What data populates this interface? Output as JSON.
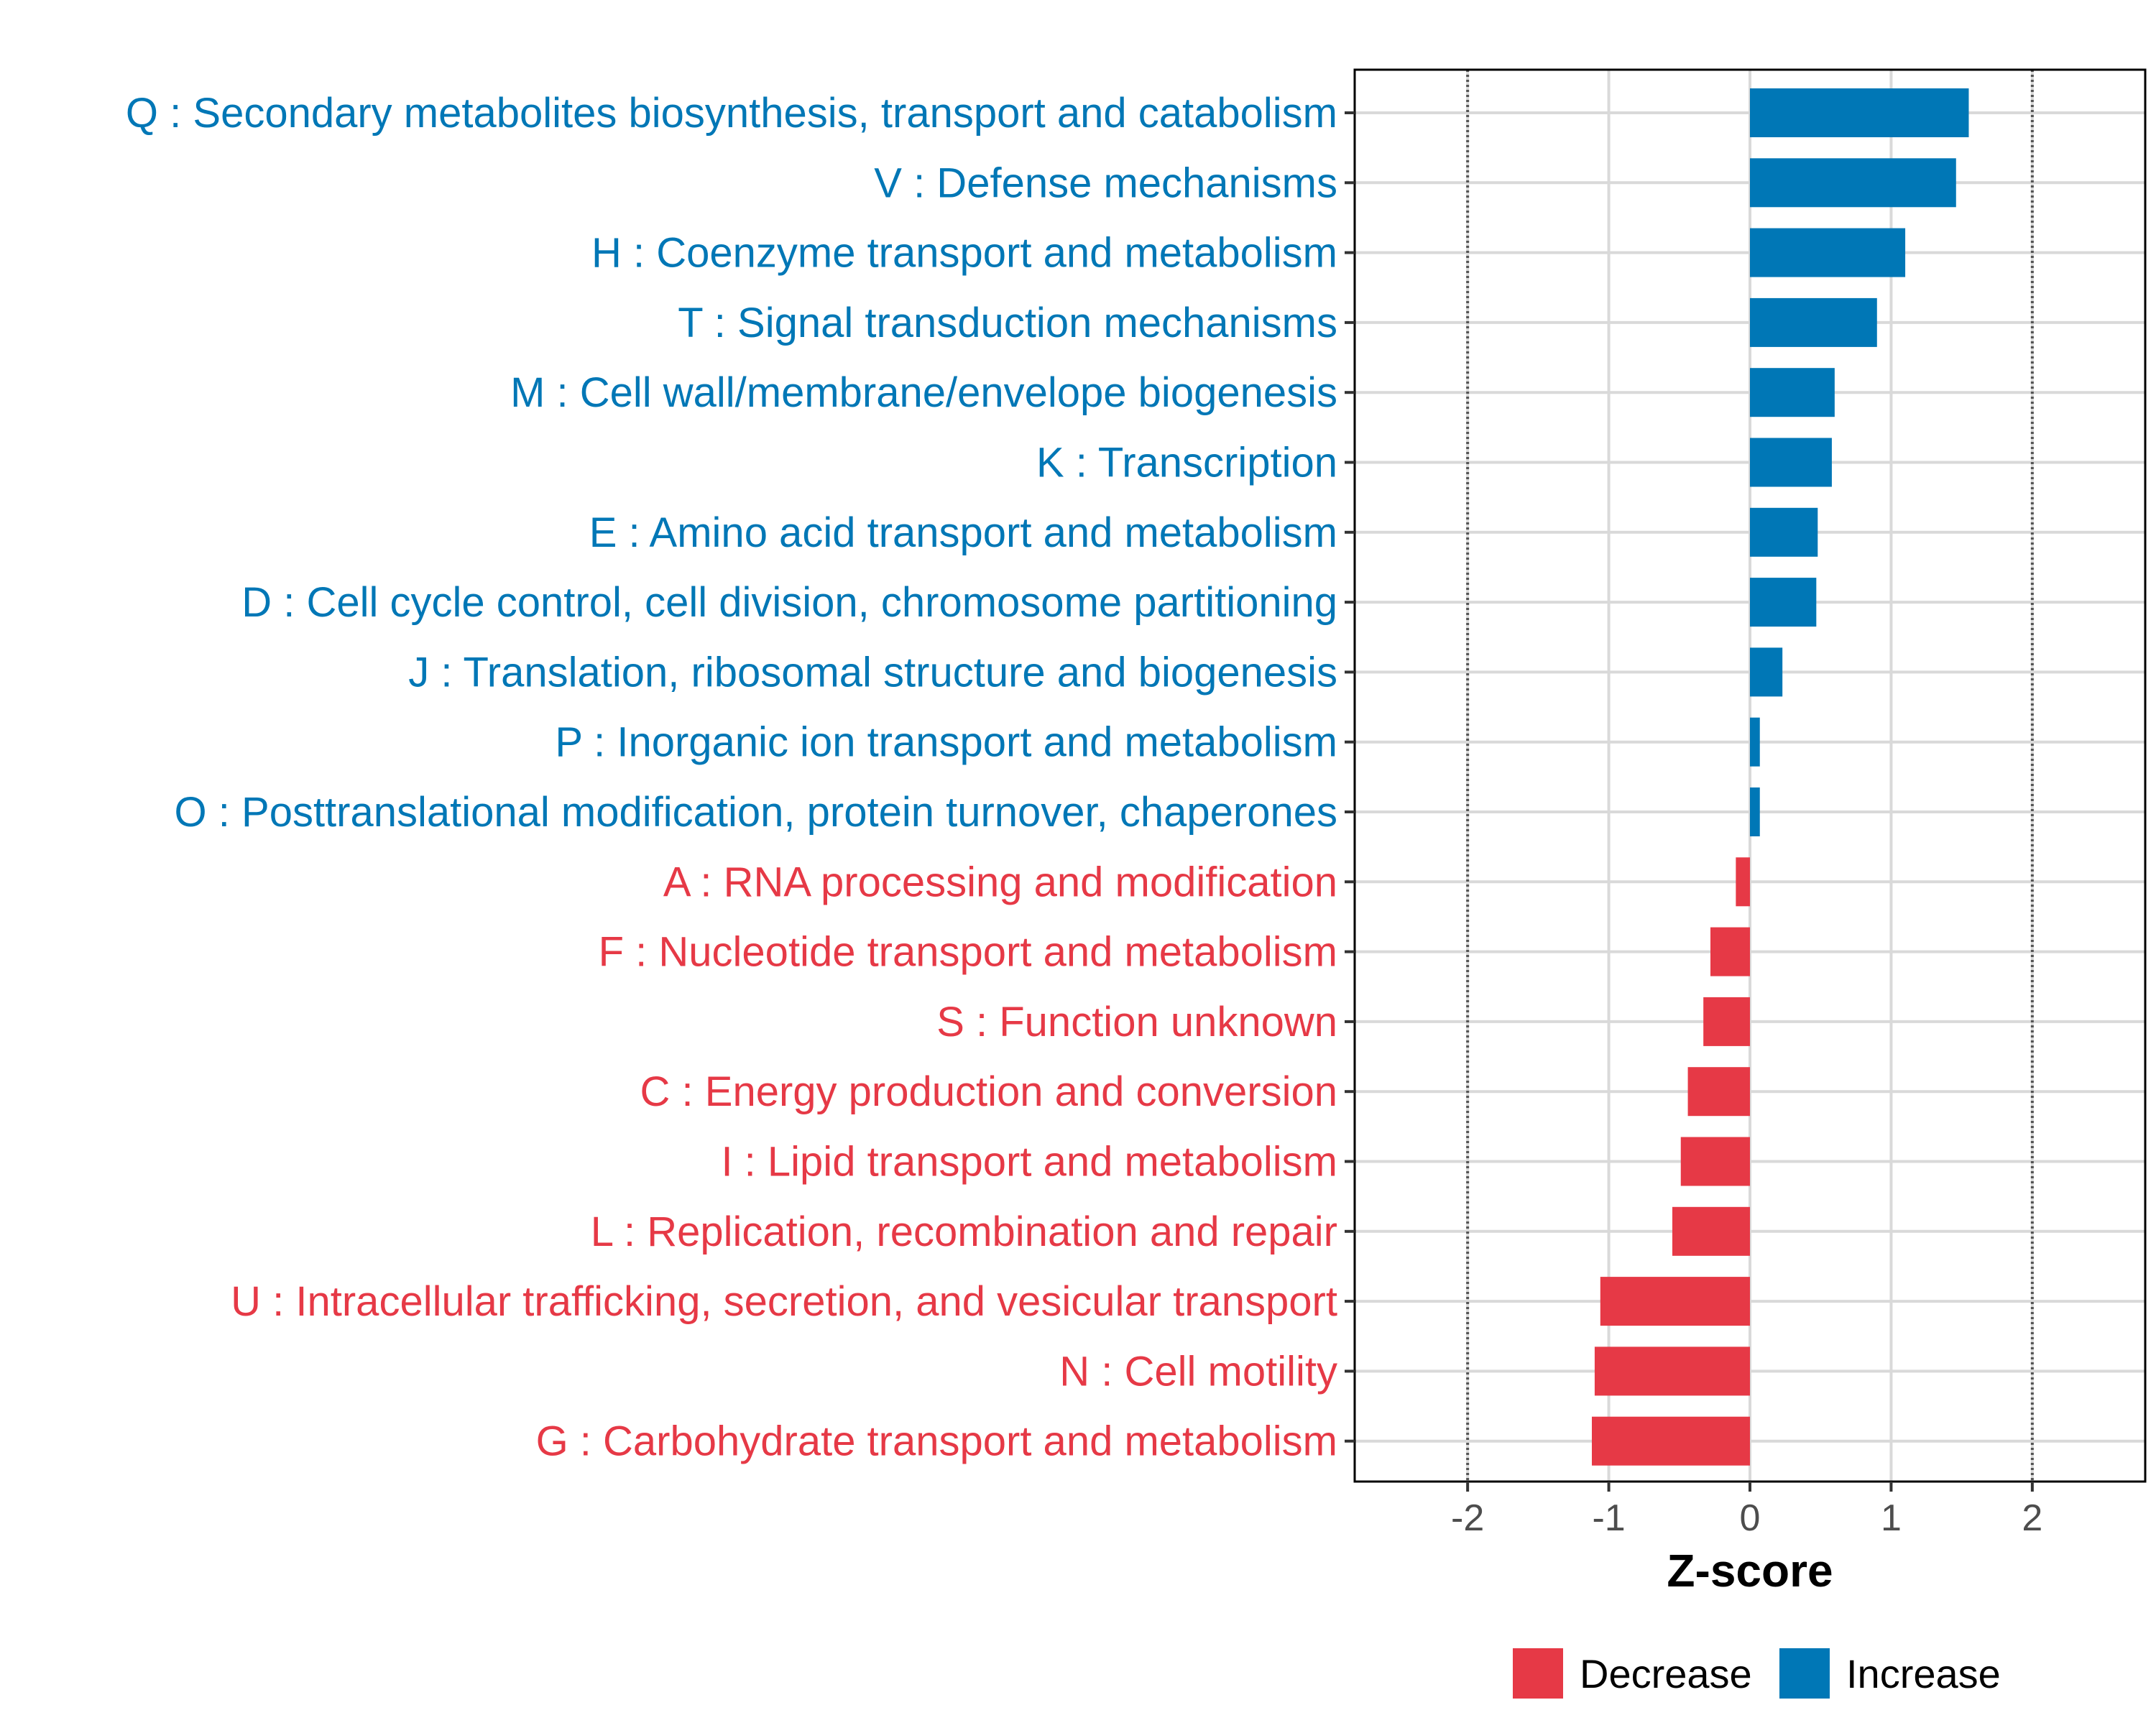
{
  "chart_data": {
    "type": "bar",
    "orientation": "horizontal",
    "xlabel": "Z-score",
    "xlim": [
      -2.8,
      2.8
    ],
    "x_ticks": [
      -2,
      -1,
      0,
      1,
      2
    ],
    "x_tick_labels": [
      "-2",
      "-1",
      "0",
      "1",
      "2"
    ],
    "reference_lines": [
      -2,
      2
    ],
    "grid": true,
    "legend_position": "bottom",
    "categories": [
      "Q : Secondary metabolites biosynthesis, transport and catabolism",
      "V : Defense mechanisms",
      "H : Coenzyme transport and metabolism",
      "T : Signal transduction mechanisms",
      "M : Cell wall/membrane/envelope biogenesis",
      "K : Transcription",
      "E : Amino acid transport and metabolism",
      "D : Cell cycle control, cell division, chromosome partitioning",
      "J : Translation, ribosomal structure and biogenesis",
      "P : Inorganic ion transport and metabolism",
      "O : Posttranslational modification, protein turnover, chaperones",
      "A : RNA processing and modification",
      "F : Nucleotide transport and metabolism",
      "S : Function unknown",
      "C : Energy production and conversion",
      "I : Lipid transport and metabolism",
      "L : Replication, recombination and repair",
      "U : Intracellular trafficking, secretion, and vesicular transport",
      "N : Cell motility",
      "G : Carbohydrate transport and metabolism"
    ],
    "values": [
      1.55,
      1.46,
      1.1,
      0.9,
      0.6,
      0.58,
      0.48,
      0.47,
      0.23,
      0.07,
      0.07,
      -0.1,
      -0.28,
      -0.33,
      -0.44,
      -0.49,
      -0.55,
      -1.06,
      -1.1,
      -1.12
    ],
    "groups": [
      "Increase",
      "Increase",
      "Increase",
      "Increase",
      "Increase",
      "Increase",
      "Increase",
      "Increase",
      "Increase",
      "Increase",
      "Increase",
      "Decrease",
      "Decrease",
      "Decrease",
      "Decrease",
      "Decrease",
      "Decrease",
      "Decrease",
      "Decrease",
      "Decrease"
    ],
    "legend": [
      {
        "name": "Decrease",
        "color": "#E63946"
      },
      {
        "name": "Increase",
        "color": "#0077B6"
      }
    ]
  }
}
